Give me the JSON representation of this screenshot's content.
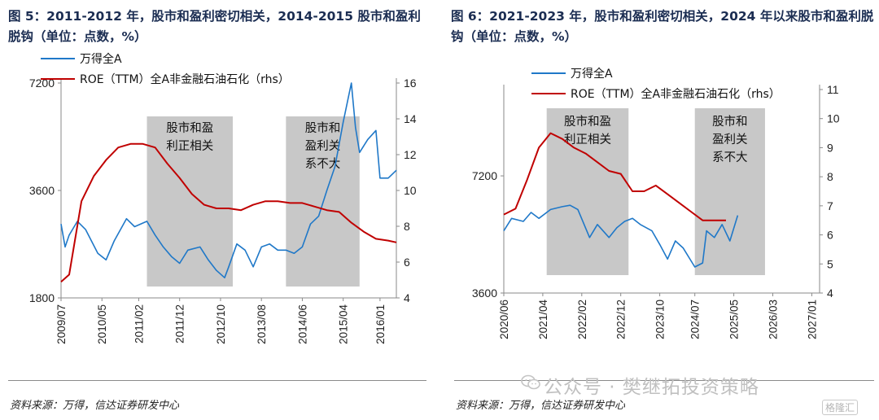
{
  "panels": [
    {
      "title": "图 5：2011-2012 年，股市和盈利密切相关，2014-2015 股市和盈利脱钩（单位：点数，%）",
      "source": "资料来源：万得，信达证券研发中心"
    },
    {
      "title": "图 6：2021-2023 年，股市和盈利密切相关，2024 年以来股市和盈利脱钩（单位：点数，%）",
      "source": "资料来源：万得，信达证券研发中心"
    }
  ],
  "watermark": "公众号 · 樊继拓投资策略",
  "corner_logo": "格隆汇",
  "colors": {
    "index_line": "#1f78c8",
    "roe_line": "#c00000",
    "shade": "#c8c8c8"
  },
  "chart_data": [
    {
      "type": "line",
      "x_tick_labels": [
        "2009/07",
        "2010/05",
        "2011/02",
        "2011/12",
        "2012/10",
        "2013/08",
        "2014/06",
        "2015/04",
        "2016/01"
      ],
      "x_range": [
        "2009/07",
        "2016/05"
      ],
      "y_left": {
        "ticks": [
          1800,
          3600,
          7200
        ],
        "range": [
          1800,
          7200
        ],
        "scale": "log"
      },
      "y_right": {
        "ticks": [
          4,
          6,
          8,
          10,
          12,
          14,
          16
        ],
        "range": [
          4,
          16
        ]
      },
      "series": [
        {
          "name": "万得全A",
          "axis": "left",
          "x": [
            "2009/07",
            "2009/08",
            "2009/09",
            "2009/11",
            "2010/01",
            "2010/04",
            "2010/06",
            "2010/08",
            "2010/11",
            "2011/01",
            "2011/04",
            "2011/06",
            "2011/08",
            "2011/10",
            "2011/12",
            "2012/02",
            "2012/05",
            "2012/07",
            "2012/09",
            "2012/11",
            "2012/12",
            "2013/02",
            "2013/04",
            "2013/06",
            "2013/08",
            "2013/10",
            "2013/12",
            "2014/02",
            "2014/04",
            "2014/06",
            "2014/08",
            "2014/10",
            "2014/12",
            "2015/02",
            "2015/04",
            "2015/06",
            "2015/07",
            "2015/08",
            "2015/10",
            "2015/12",
            "2016/01",
            "2016/03",
            "2016/05"
          ],
          "values": [
            2900,
            2500,
            2700,
            2950,
            2800,
            2400,
            2300,
            2600,
            3000,
            2850,
            2950,
            2700,
            2500,
            2350,
            2250,
            2450,
            2500,
            2300,
            2150,
            2050,
            2200,
            2550,
            2450,
            2200,
            2500,
            2550,
            2450,
            2450,
            2400,
            2500,
            2900,
            3050,
            3600,
            4200,
            5600,
            7200,
            5400,
            4600,
            5000,
            5300,
            3900,
            3900,
            4100
          ]
        },
        {
          "name": "ROE（TTM）全A非金融石油石化（rhs）",
          "axis": "right",
          "x": [
            "2009/07",
            "2009/09",
            "2009/12",
            "2010/03",
            "2010/06",
            "2010/09",
            "2010/12",
            "2011/03",
            "2011/06",
            "2011/09",
            "2011/12",
            "2012/03",
            "2012/06",
            "2012/09",
            "2012/12",
            "2013/03",
            "2013/06",
            "2013/09",
            "2013/12",
            "2014/03",
            "2014/06",
            "2014/09",
            "2014/12",
            "2015/03",
            "2015/06",
            "2015/09",
            "2015/12",
            "2016/03",
            "2016/05"
          ],
          "values": [
            4.9,
            5.3,
            9.4,
            10.8,
            11.7,
            12.4,
            12.6,
            12.6,
            12.4,
            11.5,
            10.7,
            9.8,
            9.2,
            9.0,
            9.0,
            8.9,
            9.2,
            9.4,
            9.4,
            9.3,
            9.3,
            9.1,
            8.9,
            8.8,
            8.2,
            7.7,
            7.3,
            7.2,
            7.1
          ]
        }
      ],
      "shaded_periods": [
        {
          "start": "2011/04",
          "end": "2013/01",
          "label_lines": [
            "股市和盈",
            "利正相关"
          ]
        },
        {
          "start": "2014/02",
          "end": "2015/08",
          "label_lines": [
            "股市和",
            "盈利关",
            "系不大"
          ]
        }
      ],
      "legend_position": "top-left",
      "grid": false
    },
    {
      "type": "line",
      "x_tick_labels": [
        "2020/06",
        "2021/04",
        "2022/02",
        "2022/12",
        "2023/10",
        "2024/07",
        "2025/05",
        "2026/03",
        "2027/01"
      ],
      "x_range": [
        "2020/06",
        "2027/03"
      ],
      "y_left": {
        "ticks": [
          3600,
          7200
        ],
        "range": [
          3600,
          12000
        ],
        "scale": "log"
      },
      "y_right": {
        "ticks": [
          4,
          5,
          6,
          7,
          8,
          9,
          10,
          11
        ],
        "range": [
          4,
          11
        ]
      },
      "series": [
        {
          "name": "万得全A",
          "axis": "left",
          "x": [
            "2020/06",
            "2020/08",
            "2020/11",
            "2021/01",
            "2021/03",
            "2021/06",
            "2021/09",
            "2021/11",
            "2022/01",
            "2022/04",
            "2022/06",
            "2022/09",
            "2022/11",
            "2023/01",
            "2023/03",
            "2023/05",
            "2023/08",
            "2023/10",
            "2023/12",
            "2024/02",
            "2024/04",
            "2024/07",
            "2024/09",
            "2024/10",
            "2024/12",
            "2025/02",
            "2025/04",
            "2025/06"
          ],
          "values": [
            5200,
            5600,
            5500,
            5800,
            5600,
            5900,
            6000,
            6050,
            5900,
            5000,
            5400,
            5000,
            5300,
            5500,
            5600,
            5400,
            5200,
            4800,
            4400,
            4900,
            4700,
            4200,
            4300,
            5200,
            5000,
            5400,
            4900,
            5700
          ]
        },
        {
          "name": "ROE（TTM）全A非金融石油石化（rhs）",
          "axis": "right",
          "x": [
            "2020/06",
            "2020/09",
            "2020/12",
            "2021/03",
            "2021/06",
            "2021/09",
            "2021/12",
            "2022/03",
            "2022/06",
            "2022/09",
            "2022/12",
            "2023/03",
            "2023/06",
            "2023/09",
            "2023/12",
            "2024/03",
            "2024/06",
            "2024/09",
            "2024/12",
            "2025/03"
          ],
          "values": [
            6.7,
            6.9,
            7.9,
            9.0,
            9.5,
            9.3,
            9.0,
            8.8,
            8.5,
            8.2,
            8.1,
            7.5,
            7.5,
            7.7,
            7.4,
            7.1,
            6.8,
            6.5,
            6.5,
            6.5
          ]
        }
      ],
      "shaded_periods": [
        {
          "start": "2021/05",
          "end": "2023/02",
          "label_lines": [
            "股市和盈",
            "利正相关"
          ]
        },
        {
          "start": "2024/07",
          "end": "2026/01",
          "label_lines": [
            "股市和",
            "盈利关",
            "系不大"
          ]
        }
      ],
      "legend_position": "top-left",
      "grid": false
    }
  ]
}
